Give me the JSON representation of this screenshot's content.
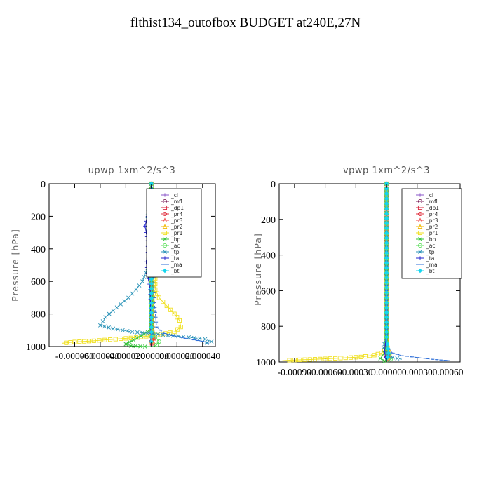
{
  "title": "flthist134_outofbox  BUDGET at240E,27N",
  "legend_labels": [
    "_cl",
    "_mfl",
    "_dp1",
    "_pr4",
    "_pr3",
    "_pr2",
    "_pr1",
    "_bp",
    "_ac",
    "_tp",
    "_ta",
    "_ma",
    "_bt"
  ],
  "colors": {
    "_cl": "#8a55c8",
    "_mfl": "#7b1f5a",
    "_dp1": "#d7263d",
    "_pr4": "#e0303f",
    "_pr3": "#ee5050",
    "_pr2": "#f2b900",
    "_pr1": "#f0e020",
    "_bp": "#33c33a",
    "_ac": "#5adf5a",
    "_tp": "#2b93b8",
    "_ta": "#2222cc",
    "_ma": "#2e6fd8",
    "_bt": "#15d6ef"
  },
  "chart_data": [
    {
      "type": "line",
      "title": "upwp   1xm^2/s^3",
      "ylabel": "Pressure [hPa]",
      "xlabel": "",
      "ylim": [
        1000,
        0
      ],
      "xlim": [
        -8e-05,
        5e-05
      ],
      "y_ticks": [
        0,
        200,
        400,
        600,
        800,
        1000
      ],
      "x_ticks": [
        -6e-05,
        -4e-05,
        -2e-05,
        0,
        2e-05,
        4e-05
      ],
      "x_tick_labels": [
        "-0.000060",
        "-0.000040",
        "-0.000020",
        "0.000000",
        "0.000020",
        "0.000040"
      ],
      "legend_position": "top-right",
      "series": [
        {
          "name": "_cl",
          "x": [
            0,
            0
          ],
          "y": [
            0,
            1000
          ]
        },
        {
          "name": "_mfl",
          "x": [
            0,
            0
          ],
          "y": [
            0,
            1000
          ]
        },
        {
          "name": "_dp1",
          "x": [
            0,
            0,
            5e-07,
            1e-06,
            5e-07,
            0
          ],
          "y": [
            0,
            850,
            900,
            950,
            980,
            1000
          ]
        },
        {
          "name": "_pr4",
          "x": [
            0,
            0,
            8e-07,
            1.5e-06,
            1e-06,
            0
          ],
          "y": [
            0,
            850,
            900,
            950,
            980,
            1000
          ]
        },
        {
          "name": "_pr3",
          "x": [
            0,
            0,
            1e-06,
            2e-06,
            1e-06,
            0
          ],
          "y": [
            0,
            850,
            900,
            950,
            980,
            1000
          ]
        },
        {
          "name": "_pr2",
          "x": [
            0,
            1e-06,
            2e-06,
            1e-06,
            0
          ],
          "y": [
            0,
            300,
            600,
            900,
            1000
          ]
        },
        {
          "name": "_pr1",
          "x": [
            0,
            1e-06,
            2e-06,
            4e-06,
            6e-06,
            8e-06,
            9e-06,
            7e-06,
            3e-06,
            3e-06,
            6e-06,
            1.2e-05,
            1.8e-05,
            2.2e-05,
            2.3e-05,
            1.8e-05,
            4e-06,
            -1.2e-05,
            -2.8e-05,
            -4.5e-05,
            -6e-05,
            -7e-05
          ],
          "y": [
            0,
            100,
            200,
            250,
            300,
            350,
            400,
            450,
            550,
            650,
            700,
            750,
            800,
            840,
            880,
            910,
            930,
            945,
            955,
            965,
            972,
            980
          ]
        },
        {
          "name": "_bp",
          "x": [
            0,
            0,
            -3e-06,
            -8e-06,
            -1.4e-05,
            -2e-05,
            -1.6e-05,
            -5e-06,
            0
          ],
          "y": [
            0,
            880,
            910,
            935,
            960,
            985,
            995,
            1000,
            1000
          ]
        },
        {
          "name": "_ac",
          "x": [
            0,
            0,
            3e-06,
            6e-06,
            4e-06,
            1e-06
          ],
          "y": [
            0,
            900,
            940,
            970,
            990,
            1000
          ]
        },
        {
          "name": "_tp",
          "x": [
            0,
            1e-06,
            -1e-06,
            -2e-06,
            -3e-06,
            -2e-06,
            -3e-06,
            -2e-06,
            -1e-06,
            -3e-06,
            -7e-06,
            -1.2e-05,
            -1.8e-05,
            -2.4e-05,
            -3e-05,
            -3.6e-05,
            -4e-05,
            -3e-05,
            -1.5e-05,
            5e-06,
            2.5e-05,
            4.2e-05,
            4.7e-05,
            4e-05
          ],
          "y": [
            0,
            50,
            100,
            150,
            200,
            230,
            270,
            350,
            450,
            520,
            600,
            650,
            700,
            740,
            780,
            820,
            870,
            890,
            910,
            925,
            940,
            955,
            970,
            985
          ]
        },
        {
          "name": "_ta",
          "x": [
            0,
            -1e-06,
            -3e-06,
            -5e-06,
            -4e-06,
            -3e-06,
            -3e-06,
            -4e-06,
            -3e-06,
            -1e-06,
            0
          ],
          "y": [
            0,
            120,
            200,
            260,
            300,
            350,
            420,
            480,
            550,
            650,
            1000
          ]
        },
        {
          "name": "_ma",
          "x": [
            0,
            2e-06,
            4e-06,
            1e-05,
            2e-05,
            3e-05,
            4e-05,
            4.5e-05
          ],
          "y": [
            0,
            700,
            880,
            920,
            940,
            955,
            968,
            980
          ]
        },
        {
          "name": "_bt",
          "x": [
            0,
            1e-06,
            2e-06,
            1e-06,
            0,
            0
          ],
          "y": [
            0,
            40,
            100,
            140,
            200,
            1000
          ]
        }
      ]
    },
    {
      "type": "line",
      "title": "vpwp   1xm^2/s^3",
      "ylabel": "Pressure [hPa]",
      "xlabel": "",
      "ylim": [
        1000,
        0
      ],
      "xlim": [
        -0.00105,
        0.00072
      ],
      "y_ticks": [
        0,
        200,
        400,
        600,
        800,
        1000
      ],
      "x_ticks": [
        -0.0009,
        -0.0006,
        -0.0003,
        0,
        0.0003,
        0.0006
      ],
      "x_tick_labels": [
        "-0.00090",
        "-0.00060",
        "-0.00030",
        "0.00000",
        "0.00030",
        "0.00060"
      ],
      "legend_position": "top-right",
      "series": [
        {
          "name": "_cl",
          "x": [
            0,
            0
          ],
          "y": [
            0,
            1000
          ]
        },
        {
          "name": "_mfl",
          "x": [
            0,
            0
          ],
          "y": [
            0,
            1000
          ]
        },
        {
          "name": "_dp1",
          "x": [
            0,
            0,
            1e-05,
            0
          ],
          "y": [
            0,
            900,
            960,
            1000
          ]
        },
        {
          "name": "_pr4",
          "x": [
            0,
            0,
            1e-05,
            0
          ],
          "y": [
            0,
            900,
            960,
            1000
          ]
        },
        {
          "name": "_pr3",
          "x": [
            0,
            0,
            2e-05,
            0
          ],
          "y": [
            0,
            900,
            960,
            1000
          ]
        },
        {
          "name": "_pr2",
          "x": [
            0,
            0,
            3e-05,
            0
          ],
          "y": [
            0,
            880,
            950,
            1000
          ]
        },
        {
          "name": "_pr1",
          "x": [
            0,
            0,
            1e-05,
            -5e-05,
            -0.00012,
            -0.00025,
            -0.0005,
            -0.00075,
            -0.00095,
            -0.00102
          ],
          "y": [
            0,
            880,
            920,
            950,
            962,
            972,
            980,
            986,
            990,
            993
          ]
        },
        {
          "name": "_bp",
          "x": [
            0,
            0,
            -2e-05,
            -6e-05,
            -2e-05,
            0
          ],
          "y": [
            0,
            900,
            950,
            980,
            995,
            1000
          ]
        },
        {
          "name": "_ac",
          "x": [
            0,
            0,
            2e-05,
            4e-05,
            1e-05
          ],
          "y": [
            0,
            920,
            960,
            985,
            1000
          ]
        },
        {
          "name": "_tp",
          "x": [
            0,
            0,
            -1e-05,
            -3e-05,
            -1e-05,
            2e-05,
            6e-05,
            0.00015
          ],
          "y": [
            0,
            850,
            880,
            920,
            950,
            965,
            975,
            985
          ]
        },
        {
          "name": "_ta",
          "x": [
            0,
            0,
            -1e-05,
            -2e-05,
            -1e-05,
            0
          ],
          "y": [
            0,
            860,
            900,
            940,
            975,
            1000
          ]
        },
        {
          "name": "_ma",
          "x": [
            0,
            0,
            2e-05,
            6e-05,
            0.00015,
            0.0003,
            0.00045,
            0.00062
          ],
          "y": [
            0,
            900,
            930,
            950,
            965,
            975,
            985,
            993
          ]
        },
        {
          "name": "_bt",
          "x": [
            0,
            0,
            1e-05,
            2e-05,
            0
          ],
          "y": [
            0,
            860,
            900,
            950,
            1000
          ]
        }
      ]
    }
  ]
}
